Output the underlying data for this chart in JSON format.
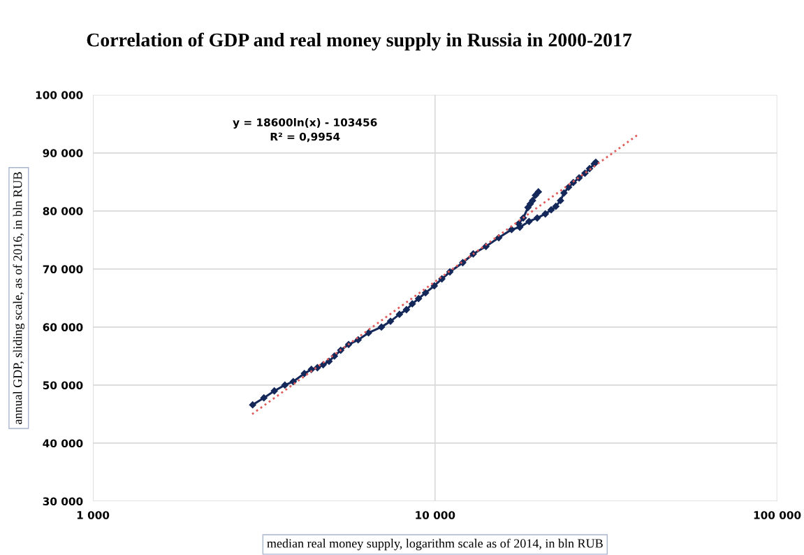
{
  "chart_data": {
    "type": "line",
    "title": "Correlation of GDP and real money supply in Russia in 2000-2017",
    "xlabel": "median real money supply, logarithm scale as of 2014, in bln RUB",
    "ylabel": "annual GDP, sliding scale, as of 2016, in bln RUB",
    "annotations": [
      "y = 18600ln(x) - 103456",
      "R² = 0,9954"
    ],
    "log": "x",
    "grid": true,
    "marker": "diamond",
    "line_style": "solid",
    "xlim": [
      1000,
      100000
    ],
    "xticks": [
      {
        "value": 1000,
        "label": "1 000"
      },
      {
        "value": 10000,
        "label": "10 000"
      },
      {
        "value": 100000,
        "label": "100 000"
      }
    ],
    "ylim": [
      30000,
      100000
    ],
    "yticks": [
      {
        "value": 30000,
        "label": "30 000"
      },
      {
        "value": 40000,
        "label": "40 000"
      },
      {
        "value": 50000,
        "label": "50 000"
      },
      {
        "value": 60000,
        "label": "60 000"
      },
      {
        "value": 70000,
        "label": "70 000"
      },
      {
        "value": 80000,
        "label": "80 000"
      },
      {
        "value": 90000,
        "label": "90 000"
      },
      {
        "value": 100000,
        "label": "100 000"
      }
    ],
    "series": [
      {
        "color": "#14285a",
        "x": [
          2930,
          3160,
          3390,
          3640,
          3850,
          4150,
          4350,
          4530,
          4710,
          4900,
          5080,
          5300,
          5590,
          5960,
          6390,
          6970,
          7410,
          7870,
          8250,
          8580,
          8950,
          9380,
          9950,
          10470,
          11050,
          12050,
          12930,
          14090,
          15360,
          16740,
          17690,
          18830,
          19890,
          21010,
          21850,
          22550,
          23270,
          23820,
          24570,
          25360,
          26370,
          27430,
          28290,
          29200,
          29500
        ],
        "values": [
          46600,
          47800,
          49000,
          50000,
          50600,
          52000,
          52700,
          53000,
          53500,
          54100,
          55000,
          56000,
          57000,
          57800,
          59000,
          60000,
          61000,
          62200,
          63000,
          64000,
          64900,
          65900,
          67100,
          68300,
          69500,
          71100,
          72600,
          73900,
          75400,
          76800,
          77200,
          78200,
          78800,
          79500,
          80200,
          80800,
          81800,
          83100,
          84100,
          84900,
          85700,
          86500,
          87300,
          88100,
          88400
        ]
      },
      {
        "color": "#14285a",
        "x": [
          17550,
          18110,
          18690,
          18980,
          19280,
          19650,
          20050
        ],
        "values": [
          77800,
          78800,
          80600,
          81200,
          81800,
          82700,
          83300
        ]
      },
      {
        "color": "#e05a5a",
        "marker": "none",
        "line_style": "dotted",
        "x": [
          2920,
          39300
        ],
        "values": [
          45000,
          93200
        ]
      }
    ]
  }
}
